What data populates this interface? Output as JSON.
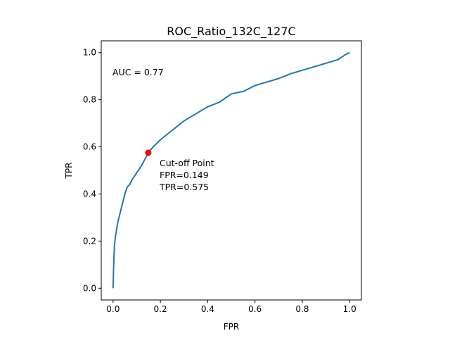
{
  "chart_data": {
    "type": "line",
    "title": "ROC_Ratio_132C_127C",
    "xlabel": "FPR",
    "ylabel": "TPR",
    "xlim": [
      -0.05,
      1.05
    ],
    "ylim": [
      -0.05,
      1.05
    ],
    "xticks": [
      0.0,
      0.2,
      0.4,
      0.6,
      0.8,
      1.0
    ],
    "yticks": [
      0.0,
      0.2,
      0.4,
      0.6,
      0.8,
      1.0
    ],
    "xtick_labels": [
      "0.0",
      "0.2",
      "0.4",
      "0.6",
      "0.8",
      "1.0"
    ],
    "ytick_labels": [
      "0.0",
      "0.2",
      "0.4",
      "0.6",
      "0.8",
      "1.0"
    ],
    "grid": false,
    "series": [
      {
        "color": "#1f77b4",
        "x": [
          0.0,
          0.002,
          0.004,
          0.006,
          0.01,
          0.015,
          0.02,
          0.03,
          0.04,
          0.05,
          0.06,
          0.07,
          0.08,
          0.1,
          0.12,
          0.149,
          0.17,
          0.2,
          0.25,
          0.3,
          0.35,
          0.4,
          0.45,
          0.5,
          0.55,
          0.6,
          0.65,
          0.7,
          0.75,
          0.8,
          0.85,
          0.9,
          0.95,
          0.98,
          1.0
        ],
        "y": [
          0.0,
          0.08,
          0.14,
          0.18,
          0.22,
          0.25,
          0.28,
          0.32,
          0.36,
          0.4,
          0.43,
          0.44,
          0.46,
          0.49,
          0.52,
          0.575,
          0.6,
          0.63,
          0.67,
          0.71,
          0.74,
          0.77,
          0.79,
          0.825,
          0.835,
          0.86,
          0.875,
          0.89,
          0.91,
          0.925,
          0.94,
          0.955,
          0.97,
          0.99,
          1.0
        ]
      }
    ],
    "cutoff_point": {
      "x": 0.149,
      "y": 0.575,
      "color": "#ff0000"
    },
    "annotations": {
      "auc": "AUC = 0.77",
      "cutoff_title": "Cut-off Point",
      "cutoff_fpr": "FPR=0.149",
      "cutoff_tpr": "TPR=0.575"
    }
  }
}
